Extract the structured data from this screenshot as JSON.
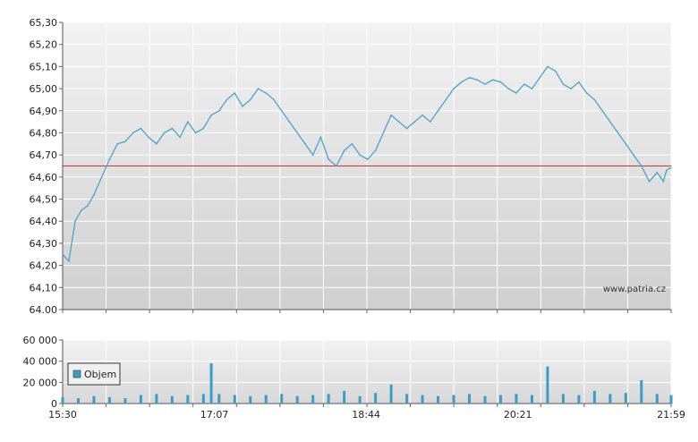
{
  "chart_data": [
    {
      "type": "line",
      "title": "",
      "xlabel": "",
      "ylabel": "",
      "ylim": [
        64.0,
        65.3
      ],
      "y_ticks": [
        "65,30",
        "65,20",
        "65,10",
        "65,00",
        "64,90",
        "64,80",
        "64,70",
        "64,60",
        "64,50",
        "64,40",
        "64,30",
        "64,20",
        "64,10",
        "64.00"
      ],
      "x_time_range": [
        "15:30",
        "21:59"
      ],
      "reference_line": {
        "value": 64.65,
        "color": "#cc3333"
      },
      "line_color": "#4aa3d0",
      "watermark": "www.patria.cz",
      "grid": true,
      "series": [
        {
          "x": [
            "15:30",
            "15:34",
            "15:38",
            "15:42",
            "15:46",
            "15:50",
            "15:55",
            "16:00",
            "16:05",
            "16:10",
            "16:15",
            "16:20",
            "16:25",
            "16:30",
            "16:35",
            "16:40",
            "16:45",
            "16:50",
            "16:55",
            "17:00",
            "17:05",
            "17:10",
            "17:15",
            "17:20",
            "17:25",
            "17:30",
            "17:35",
            "17:40",
            "17:45",
            "17:50",
            "17:55",
            "18:00",
            "18:05",
            "18:10",
            "18:15",
            "18:20",
            "18:25",
            "18:30",
            "18:35",
            "18:40",
            "18:45",
            "18:50",
            "18:55",
            "19:00",
            "19:05",
            "19:10",
            "19:15",
            "19:20",
            "19:25",
            "19:30",
            "19:35",
            "19:40",
            "19:45",
            "19:50",
            "19:55",
            "20:00",
            "20:05",
            "20:10",
            "20:15",
            "20:20",
            "20:25",
            "20:30",
            "20:35",
            "20:40",
            "20:45",
            "20:50",
            "20:55",
            "21:00",
            "21:05",
            "21:10",
            "21:15",
            "21:20",
            "21:25",
            "21:30",
            "21:35",
            "21:40",
            "21:45",
            "21:50",
            "21:52",
            "21:54",
            "21:56",
            "21:58",
            "21:59"
          ],
          "y": [
            64.25,
            64.22,
            64.4,
            64.45,
            64.47,
            64.52,
            64.6,
            64.68,
            64.75,
            64.76,
            64.8,
            64.82,
            64.78,
            64.75,
            64.8,
            64.82,
            64.78,
            64.85,
            64.8,
            64.82,
            64.88,
            64.9,
            64.95,
            64.98,
            64.92,
            64.95,
            65.0,
            64.98,
            64.95,
            64.9,
            64.85,
            64.8,
            64.75,
            64.7,
            64.78,
            64.68,
            64.65,
            64.72,
            64.75,
            64.7,
            64.68,
            64.72,
            64.8,
            64.88,
            64.85,
            64.82,
            64.85,
            64.88,
            64.85,
            64.9,
            64.95,
            65.0,
            65.03,
            65.05,
            65.04,
            65.02,
            65.04,
            65.03,
            65.0,
            64.98,
            65.02,
            65.0,
            65.05,
            65.1,
            65.08,
            65.02,
            65.0,
            65.03,
            64.98,
            64.95,
            64.9,
            64.85,
            64.8,
            64.75,
            64.7,
            64.65,
            64.58,
            64.62,
            64.6,
            64.58,
            64.63,
            64.64,
            64.64
          ]
        }
      ]
    },
    {
      "type": "bar",
      "title": "",
      "xlabel": "",
      "ylabel": "",
      "ylim": [
        0,
        60000
      ],
      "y_ticks": [
        "60 000",
        "40 000",
        "20 000",
        "0"
      ],
      "x_ticks": [
        "15:30",
        "17:07",
        "18:44",
        "20:21",
        "21:59"
      ],
      "legend": {
        "label": "Objem",
        "position": "top-left"
      },
      "bar_color": "#3a9cc8",
      "grid": true,
      "series": [
        {
          "name": "Objem",
          "x": [
            "15:30",
            "15:40",
            "15:50",
            "16:00",
            "16:10",
            "16:20",
            "16:30",
            "16:40",
            "16:50",
            "17:00",
            "17:05",
            "17:10",
            "17:20",
            "17:30",
            "17:40",
            "17:50",
            "18:00",
            "18:10",
            "18:20",
            "18:30",
            "18:40",
            "18:50",
            "19:00",
            "19:10",
            "19:20",
            "19:30",
            "19:40",
            "19:50",
            "20:00",
            "20:10",
            "20:20",
            "20:30",
            "20:40",
            "20:50",
            "21:00",
            "21:10",
            "21:20",
            "21:30",
            "21:40",
            "21:50",
            "21:59"
          ],
          "values": [
            6000,
            5000,
            7000,
            6000,
            5000,
            8000,
            9000,
            7000,
            8000,
            9000,
            38000,
            9000,
            8000,
            7000,
            8000,
            9000,
            7000,
            8000,
            9000,
            12000,
            7000,
            10000,
            18000,
            9000,
            8000,
            7000,
            8000,
            9000,
            7000,
            8000,
            9000,
            8000,
            35000,
            9000,
            8000,
            12000,
            9000,
            10000,
            22000,
            9000,
            8000
          ]
        }
      ]
    }
  ]
}
